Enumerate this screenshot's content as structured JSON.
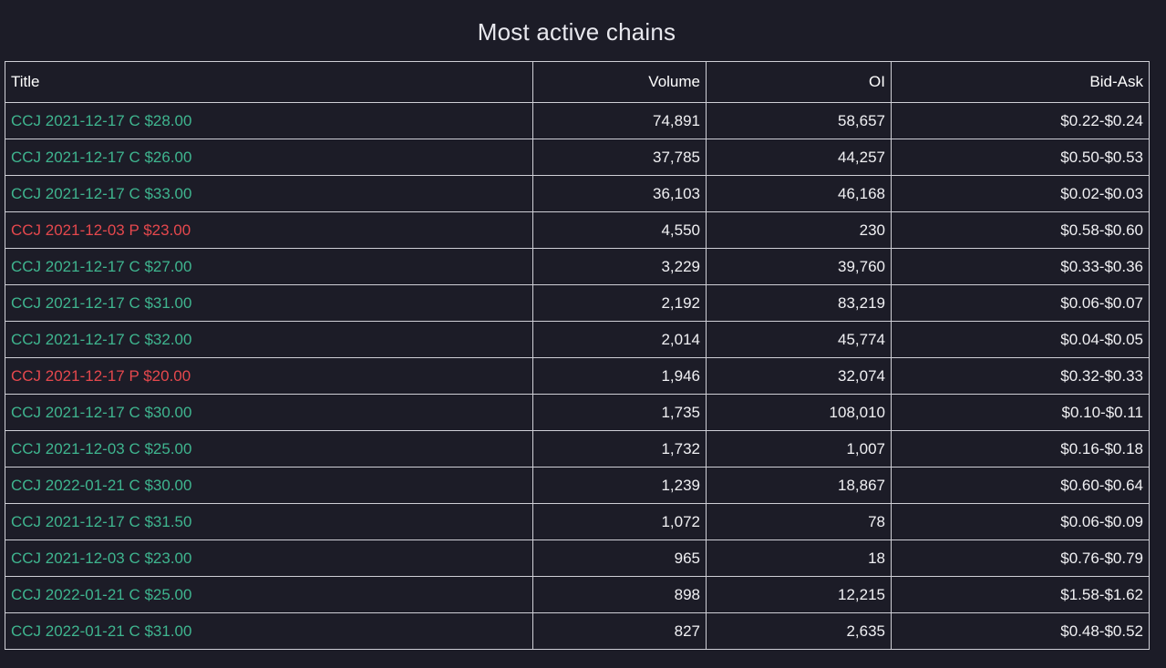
{
  "page": {
    "title": "Most active chains"
  },
  "colors": {
    "background": "#1c1c27",
    "call": "#3fb58f",
    "put": "#e5484d",
    "text": "#f0f0f3",
    "border": "#cfcfd6"
  },
  "table": {
    "headers": {
      "title": "Title",
      "volume": "Volume",
      "oi": "OI",
      "bid_ask": "Bid-Ask"
    },
    "rows": [
      {
        "title": "CCJ 2021-12-17 C $28.00",
        "type": "call",
        "volume": "74,891",
        "oi": "58,657",
        "bid_ask": "$0.22-$0.24"
      },
      {
        "title": "CCJ 2021-12-17 C $26.00",
        "type": "call",
        "volume": "37,785",
        "oi": "44,257",
        "bid_ask": "$0.50-$0.53"
      },
      {
        "title": "CCJ 2021-12-17 C $33.00",
        "type": "call",
        "volume": "36,103",
        "oi": "46,168",
        "bid_ask": "$0.02-$0.03"
      },
      {
        "title": "CCJ 2021-12-03 P $23.00",
        "type": "put",
        "volume": "4,550",
        "oi": "230",
        "bid_ask": "$0.58-$0.60"
      },
      {
        "title": "CCJ 2021-12-17 C $27.00",
        "type": "call",
        "volume": "3,229",
        "oi": "39,760",
        "bid_ask": "$0.33-$0.36"
      },
      {
        "title": "CCJ 2021-12-17 C $31.00",
        "type": "call",
        "volume": "2,192",
        "oi": "83,219",
        "bid_ask": "$0.06-$0.07"
      },
      {
        "title": "CCJ 2021-12-17 C $32.00",
        "type": "call",
        "volume": "2,014",
        "oi": "45,774",
        "bid_ask": "$0.04-$0.05"
      },
      {
        "title": "CCJ 2021-12-17 P $20.00",
        "type": "put",
        "volume": "1,946",
        "oi": "32,074",
        "bid_ask": "$0.32-$0.33"
      },
      {
        "title": "CCJ 2021-12-17 C $30.00",
        "type": "call",
        "volume": "1,735",
        "oi": "108,010",
        "bid_ask": "$0.10-$0.11"
      },
      {
        "title": "CCJ 2021-12-03 C $25.00",
        "type": "call",
        "volume": "1,732",
        "oi": "1,007",
        "bid_ask": "$0.16-$0.18"
      },
      {
        "title": "CCJ 2022-01-21 C $30.00",
        "type": "call",
        "volume": "1,239",
        "oi": "18,867",
        "bid_ask": "$0.60-$0.64"
      },
      {
        "title": "CCJ 2021-12-17 C $31.50",
        "type": "call",
        "volume": "1,072",
        "oi": "78",
        "bid_ask": "$0.06-$0.09"
      },
      {
        "title": "CCJ 2021-12-03 C $23.00",
        "type": "call",
        "volume": "965",
        "oi": "18",
        "bid_ask": "$0.76-$0.79"
      },
      {
        "title": "CCJ 2022-01-21 C $25.00",
        "type": "call",
        "volume": "898",
        "oi": "12,215",
        "bid_ask": "$1.58-$1.62"
      },
      {
        "title": "CCJ 2022-01-21 C $31.00",
        "type": "call",
        "volume": "827",
        "oi": "2,635",
        "bid_ask": "$0.48-$0.52"
      }
    ]
  }
}
